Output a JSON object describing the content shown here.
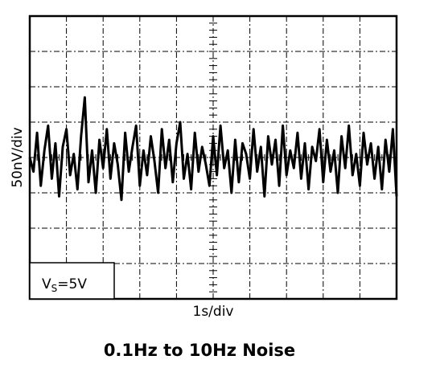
{
  "chart_data": {
    "type": "line",
    "title": "0.1Hz to 10Hz Noise",
    "x_label": "1s/div",
    "y_label": "50nV/div",
    "annotation": {
      "main": "V",
      "sub": "S",
      "rest": "=5V"
    },
    "xlim": [
      0,
      10
    ],
    "xticks": [
      0,
      1,
      2,
      3,
      4,
      5,
      6,
      7,
      8,
      9,
      10
    ],
    "ylim": [
      -200,
      200
    ],
    "yticks": [
      -200,
      -150,
      -100,
      -50,
      0,
      50,
      100,
      150,
      200
    ],
    "grid": true,
    "x": [
      0,
      0.1,
      0.2,
      0.3,
      0.4,
      0.5,
      0.6,
      0.7,
      0.8,
      0.9,
      1,
      1.1,
      1.2,
      1.3,
      1.4,
      1.5,
      1.6,
      1.7,
      1.8,
      1.9,
      2,
      2.1,
      2.2,
      2.3,
      2.4,
      2.5,
      2.6,
      2.7,
      2.8,
      2.9,
      3,
      3.1,
      3.2,
      3.3,
      3.4,
      3.5,
      3.6,
      3.7,
      3.8,
      3.9,
      4,
      4.1,
      4.2,
      4.3,
      4.4,
      4.5,
      4.6,
      4.7,
      4.8,
      4.9,
      5,
      5.1,
      5.2,
      5.3,
      5.4,
      5.5,
      5.6,
      5.7,
      5.8,
      5.9,
      6,
      6.1,
      6.2,
      6.3,
      6.4,
      6.5,
      6.6,
      6.7,
      6.8,
      6.9,
      7,
      7.1,
      7.2,
      7.3,
      7.4,
      7.5,
      7.6,
      7.7,
      7.8,
      7.9,
      8,
      8.1,
      8.2,
      8.3,
      8.4,
      8.5,
      8.6,
      8.7,
      8.8,
      8.9,
      9,
      9.1,
      9.2,
      9.3,
      9.4,
      9.5,
      9.6,
      9.7,
      9.8,
      9.9,
      10
    ],
    "series": [
      {
        "color": "#000000",
        "values": [
          0,
          -20,
          35,
          -40,
          10,
          45,
          -30,
          20,
          -55,
          15,
          40,
          -25,
          5,
          -45,
          30,
          85,
          -35,
          10,
          -50,
          25,
          -15,
          40,
          -30,
          20,
          -10,
          -60,
          35,
          -20,
          15,
          45,
          -40,
          10,
          -25,
          30,
          -5,
          -50,
          40,
          -15,
          25,
          -35,
          20,
          50,
          -30,
          5,
          -45,
          35,
          -20,
          15,
          -10,
          -40,
          30,
          -25,
          45,
          -15,
          10,
          -50,
          25,
          -35,
          20,
          5,
          -30,
          40,
          -20,
          15,
          -55,
          30,
          -10,
          25,
          -40,
          45,
          -25,
          10,
          -15,
          35,
          -30,
          20,
          -45,
          15,
          -5,
          40,
          -35,
          25,
          -20,
          10,
          -50,
          30,
          -15,
          45,
          -25,
          5,
          -40,
          35,
          -10,
          20,
          -30,
          15,
          -45,
          25,
          -20,
          40,
          -55
        ]
      }
    ]
  }
}
